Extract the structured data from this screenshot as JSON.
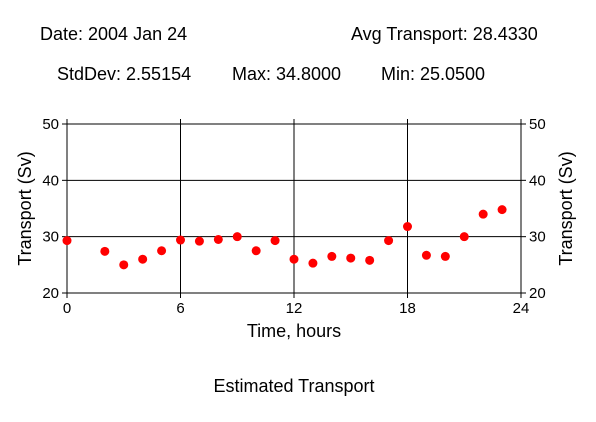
{
  "header": {
    "date_text": "Date: 2004 Jan 24",
    "avg_text": "Avg Transport: 28.4330",
    "std_text": "StdDev: 2.55154",
    "max_text": "Max: 34.8000",
    "min_text": "Min: 25.0500"
  },
  "chart_data": {
    "type": "scatter",
    "title": "Estimated Transport",
    "xlabel": "Time, hours",
    "ylabel": "Transport (Sv)",
    "xlim": [
      0,
      24
    ],
    "ylim": [
      20,
      50
    ],
    "xticks": [
      0,
      6,
      12,
      18,
      24
    ],
    "yticks": [
      20,
      30,
      40,
      50
    ],
    "grid": true,
    "marker_color": "#ff0000",
    "x": [
      0,
      2,
      3,
      4,
      5,
      6,
      7,
      8,
      9,
      10,
      11,
      12,
      13,
      14,
      15,
      16,
      17,
      18,
      19,
      20,
      21,
      22,
      23
    ],
    "y": [
      29.3,
      27.4,
      25.0,
      26.0,
      27.5,
      29.4,
      29.2,
      29.5,
      30.0,
      27.5,
      29.3,
      26.0,
      25.3,
      26.5,
      26.2,
      25.8,
      29.3,
      31.8,
      26.7,
      26.5,
      30.0,
      34.0,
      34.8
    ]
  }
}
